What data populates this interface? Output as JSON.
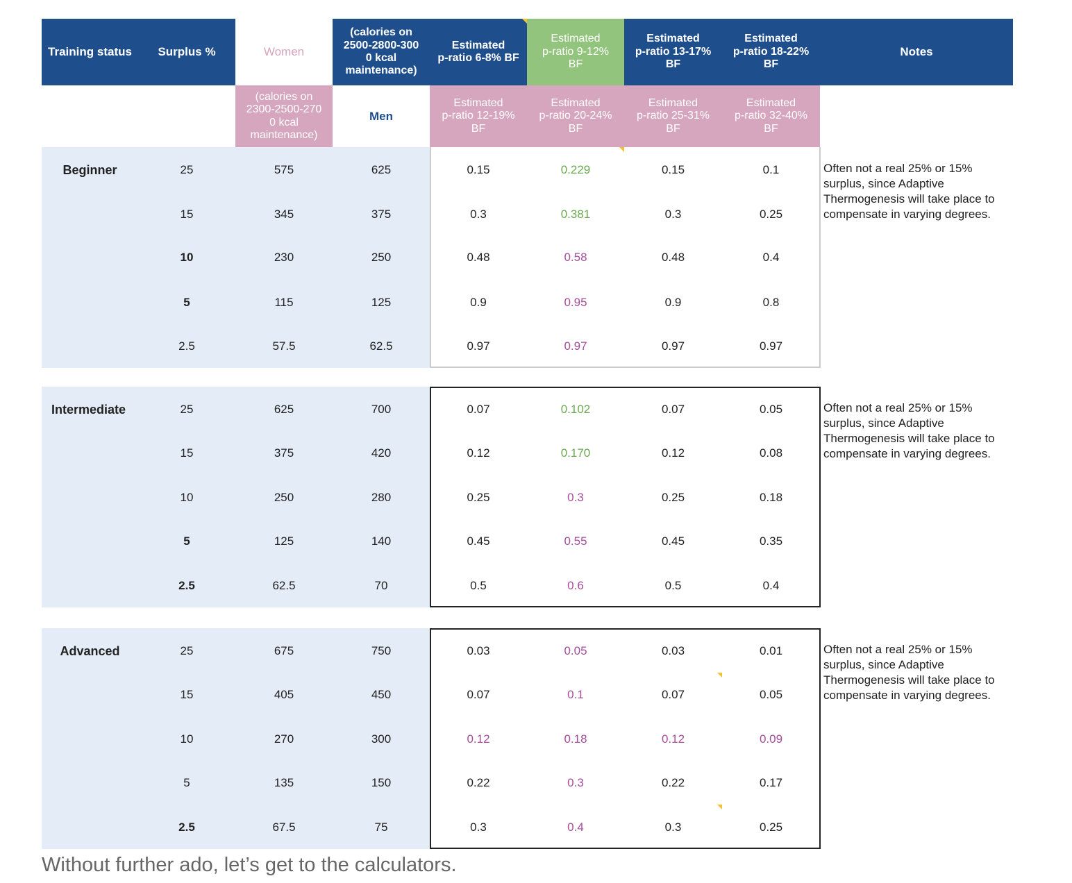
{
  "header": {
    "training_status": "Training status",
    "surplus": "Surplus %",
    "women": "Women",
    "women_calories": "(calories on\n2300-2500-270\n0 kcal\nmaintenance)",
    "men_calories": "(calories on\n2500-2800-300\n0 kcal\nmaintenance)",
    "men": "Men",
    "men_pratio": [
      "Estimated\np-ratio 6-8% BF",
      "Estimated\np-ratio 9-12%\nBF",
      "Estimated\np-ratio 13-17%\nBF",
      "Estimated\np-ratio 18-22%\nBF"
    ],
    "women_pratio": [
      "Estimated\np-ratio 12-19%\nBF",
      "Estimated\np-ratio 20-24%\nBF",
      "Estimated\np-ratio 25-31%\nBF",
      "Estimated\np-ratio 32-40%\nBF"
    ],
    "notes": "Notes"
  },
  "groups": [
    {
      "status": "Beginner",
      "note": "Often not a real 25% or 15%\nsurplus, since Adaptive\nThermogenesis will take place to\ncompensate in varying degrees.",
      "rows": [
        {
          "surplus": "25",
          "women": "575",
          "men": "625",
          "p": [
            "0.15",
            "0.229",
            "0.15",
            "0.1"
          ]
        },
        {
          "surplus": "15",
          "women": "345",
          "men": "375",
          "p": [
            "0.3",
            "0.381",
            "0.3",
            "0.25"
          ]
        },
        {
          "surplus": "10",
          "women": "230",
          "men": "250",
          "p": [
            "0.48",
            "0.58",
            "0.48",
            "0.4"
          ]
        },
        {
          "surplus": "5",
          "women": "115",
          "men": "125",
          "p": [
            "0.9",
            "0.95",
            "0.9",
            "0.8"
          ]
        },
        {
          "surplus": "2.5",
          "women": "57.5",
          "men": "62.5",
          "p": [
            "0.97",
            "0.97",
            "0.97",
            "0.97"
          ]
        }
      ]
    },
    {
      "status": "Intermediate",
      "note": "Often not a real 25% or 15%\nsurplus, since Adaptive\nThermogenesis will take place to\ncompensate in varying degrees.",
      "rows": [
        {
          "surplus": "25",
          "women": "625",
          "men": "700",
          "p": [
            "0.07",
            "0.102",
            "0.07",
            "0.05"
          ]
        },
        {
          "surplus": "15",
          "women": "375",
          "men": "420",
          "p": [
            "0.12",
            "0.170",
            "0.12",
            "0.08"
          ]
        },
        {
          "surplus": "10",
          "women": "250",
          "men": "280",
          "p": [
            "0.25",
            "0.3",
            "0.25",
            "0.18"
          ]
        },
        {
          "surplus": "5",
          "women": "125",
          "men": "140",
          "p": [
            "0.45",
            "0.55",
            "0.45",
            "0.35"
          ]
        },
        {
          "surplus": "2.5",
          "women": "62.5",
          "men": "70",
          "p": [
            "0.5",
            "0.6",
            "0.5",
            "0.4"
          ]
        }
      ]
    },
    {
      "status": "Advanced",
      "note": "Often not a real 25% or 15%\nsurplus, since Adaptive\nThermogenesis will take place to\ncompensate in varying degrees.",
      "rows": [
        {
          "surplus": "25",
          "women": "675",
          "men": "750",
          "p": [
            "0.03",
            "0.05",
            "0.03",
            "0.01"
          ]
        },
        {
          "surplus": "15",
          "women": "405",
          "men": "450",
          "p": [
            "0.07",
            "0.1",
            "0.07",
            "0.05"
          ]
        },
        {
          "surplus": "10",
          "women": "270",
          "men": "300",
          "p": [
            "0.12",
            "0.18",
            "0.12",
            "0.09"
          ]
        },
        {
          "surplus": "5",
          "women": "135",
          "men": "150",
          "p": [
            "0.22",
            "0.3",
            "0.22",
            "0.17"
          ]
        },
        {
          "surplus": "2.5",
          "women": "67.5",
          "men": "75",
          "p": [
            "0.3",
            "0.4",
            "0.3",
            "0.25"
          ]
        }
      ]
    }
  ],
  "colors": {
    "header_blue": "#1f4e8c",
    "header_green": "#93c47d",
    "header_pink": "#d5a6bd",
    "light_blue_bg": "#e4ecf7",
    "value_green": "#6aa84f",
    "value_purple": "#a64d9c"
  },
  "footer": "Without further ado, let’s get to the calculators."
}
